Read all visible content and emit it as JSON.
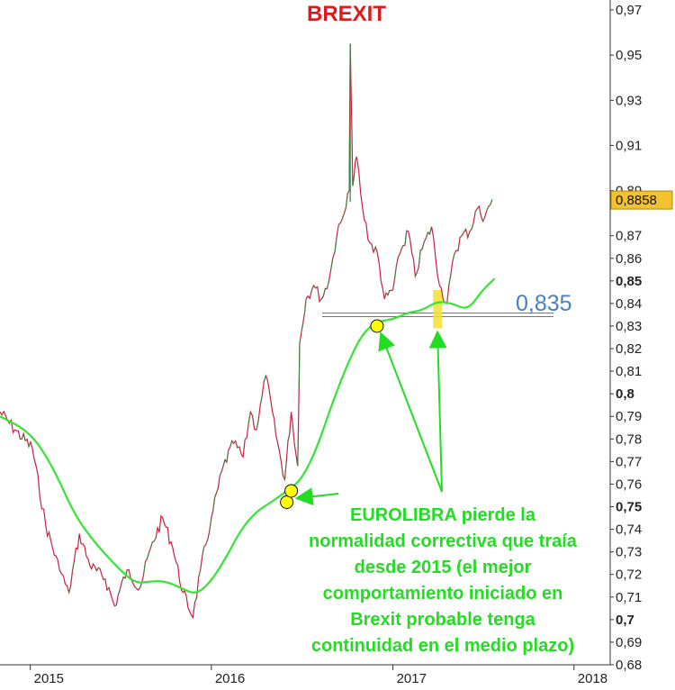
{
  "chart_data": {
    "type": "line",
    "title": "BREXIT",
    "xlabel": "",
    "ylabel": "",
    "x_ticks": [
      "2015",
      "2016",
      "2017",
      "2018"
    ],
    "xlim": [
      "2014-11-01",
      "2018-03-15"
    ],
    "ylim": [
      0.68,
      0.972
    ],
    "y_ticks": [
      "0,97",
      "0,95",
      "0,93",
      "0,91",
      "0,89",
      "0,87",
      "0,86",
      "0,85",
      "0,84",
      "0,83",
      "0,82",
      "0,81",
      "0,8",
      "0,79",
      "0,78",
      "0,77",
      "0,76",
      "0,75",
      "0,74",
      "0,73",
      "0,72",
      "0,71",
      "0,7",
      "0,69",
      "0,68"
    ],
    "y_tick_values": [
      0.97,
      0.95,
      0.93,
      0.91,
      0.89,
      0.87,
      0.86,
      0.85,
      0.84,
      0.83,
      0.82,
      0.81,
      0.8,
      0.79,
      0.78,
      0.77,
      0.76,
      0.75,
      0.74,
      0.73,
      0.72,
      0.71,
      0.7,
      0.69,
      0.68
    ],
    "y_ticks_bold": [
      "0,85",
      "0,8",
      "0,75",
      "0,7"
    ],
    "grid": false,
    "series": [
      {
        "role": "price",
        "color": "#cc1f3f",
        "dates": [
          "2014-11-01",
          "2014-12-01",
          "2015-01-05",
          "2015-02-01",
          "2015-03-01",
          "2015-03-20",
          "2015-04-10",
          "2015-05-01",
          "2015-06-01",
          "2015-06-20",
          "2015-07-15",
          "2015-08-10",
          "2015-09-01",
          "2015-09-25",
          "2015-10-15",
          "2015-11-05",
          "2015-11-25",
          "2015-12-10",
          "2016-01-01",
          "2016-01-25",
          "2016-02-15",
          "2016-03-05",
          "2016-03-20",
          "2016-04-01",
          "2016-04-20",
          "2016-05-10",
          "2016-05-28",
          "2016-06-10",
          "2016-06-23",
          "2016-06-27",
          "2016-07-10",
          "2016-07-25",
          "2016-08-10",
          "2016-08-25",
          "2016-09-10",
          "2016-09-25",
          "2016-10-05",
          "2016-10-07",
          "2016-10-12",
          "2016-10-20",
          "2016-11-01",
          "2016-11-15",
          "2016-12-01",
          "2016-12-15",
          "2017-01-01",
          "2017-01-15",
          "2017-02-01",
          "2017-02-15",
          "2017-03-01",
          "2017-03-20",
          "2017-04-05",
          "2017-04-20",
          "2017-05-05",
          "2017-05-20",
          "2017-06-05",
          "2017-06-20",
          "2017-07-05",
          "2017-07-20"
        ],
        "values": [
          0.792,
          0.784,
          0.776,
          0.742,
          0.722,
          0.712,
          0.738,
          0.724,
          0.718,
          0.706,
          0.722,
          0.714,
          0.732,
          0.745,
          0.732,
          0.712,
          0.701,
          0.722,
          0.745,
          0.768,
          0.778,
          0.772,
          0.792,
          0.784,
          0.808,
          0.782,
          0.762,
          0.792,
          0.768,
          0.822,
          0.842,
          0.848,
          0.842,
          0.85,
          0.87,
          0.88,
          0.89,
          0.955,
          0.892,
          0.905,
          0.882,
          0.867,
          0.862,
          0.842,
          0.846,
          0.862,
          0.872,
          0.852,
          0.864,
          0.874,
          0.848,
          0.84,
          0.862,
          0.87,
          0.872,
          0.882,
          0.878,
          0.886
        ]
      },
      {
        "role": "moving-average",
        "color": "#33e633",
        "dates": [
          "2014-11-01",
          "2015-01-01",
          "2015-02-15",
          "2015-04-01",
          "2015-05-15",
          "2015-07-01",
          "2015-08-01",
          "2015-09-01",
          "2015-10-01",
          "2015-11-01",
          "2015-12-01",
          "2016-01-01",
          "2016-02-01",
          "2016-03-01",
          "2016-04-01",
          "2016-05-01",
          "2016-06-01",
          "2016-07-01",
          "2016-08-01",
          "2016-09-01",
          "2016-10-01",
          "2016-11-01",
          "2016-12-01",
          "2017-01-01",
          "2017-02-01",
          "2017-03-01",
          "2017-04-01",
          "2017-05-01",
          "2017-06-01",
          "2017-07-01",
          "2017-07-25"
        ],
        "values": [
          0.79,
          0.783,
          0.768,
          0.746,
          0.733,
          0.722,
          0.716,
          0.717,
          0.717,
          0.714,
          0.711,
          0.717,
          0.728,
          0.74,
          0.748,
          0.752,
          0.757,
          0.762,
          0.776,
          0.796,
          0.813,
          0.827,
          0.832,
          0.833,
          0.836,
          0.837,
          0.841,
          0.84,
          0.837,
          0.846,
          0.851
        ]
      }
    ],
    "support_level": {
      "value": 0.835,
      "label": "0,835",
      "color": "#4a7fc0"
    },
    "last_price": {
      "value": 0.8858,
      "label": "0,8858",
      "badge_color": "#f2c230"
    },
    "markers": [
      {
        "date": "2016-06-01",
        "value": 0.752,
        "color": "#ffff00"
      },
      {
        "date": "2016-06-10",
        "value": 0.757,
        "color": "#ffff00"
      },
      {
        "date": "2016-11-30",
        "value": 0.83,
        "color": "#ffff00"
      }
    ],
    "highlight": {
      "date": "2017-04-01",
      "low": 0.829,
      "high": 0.846,
      "color": "#f2e033"
    },
    "annotation": {
      "lines": [
        "EUROLIBRA pierde la",
        "normalidad correctiva que traía",
        "desde 2015 (el mejor",
        "comportamiento iniciado en",
        "Brexit  probable tenga",
        "continuidad en el medio plazo)"
      ],
      "color": "#22dd22"
    }
  }
}
